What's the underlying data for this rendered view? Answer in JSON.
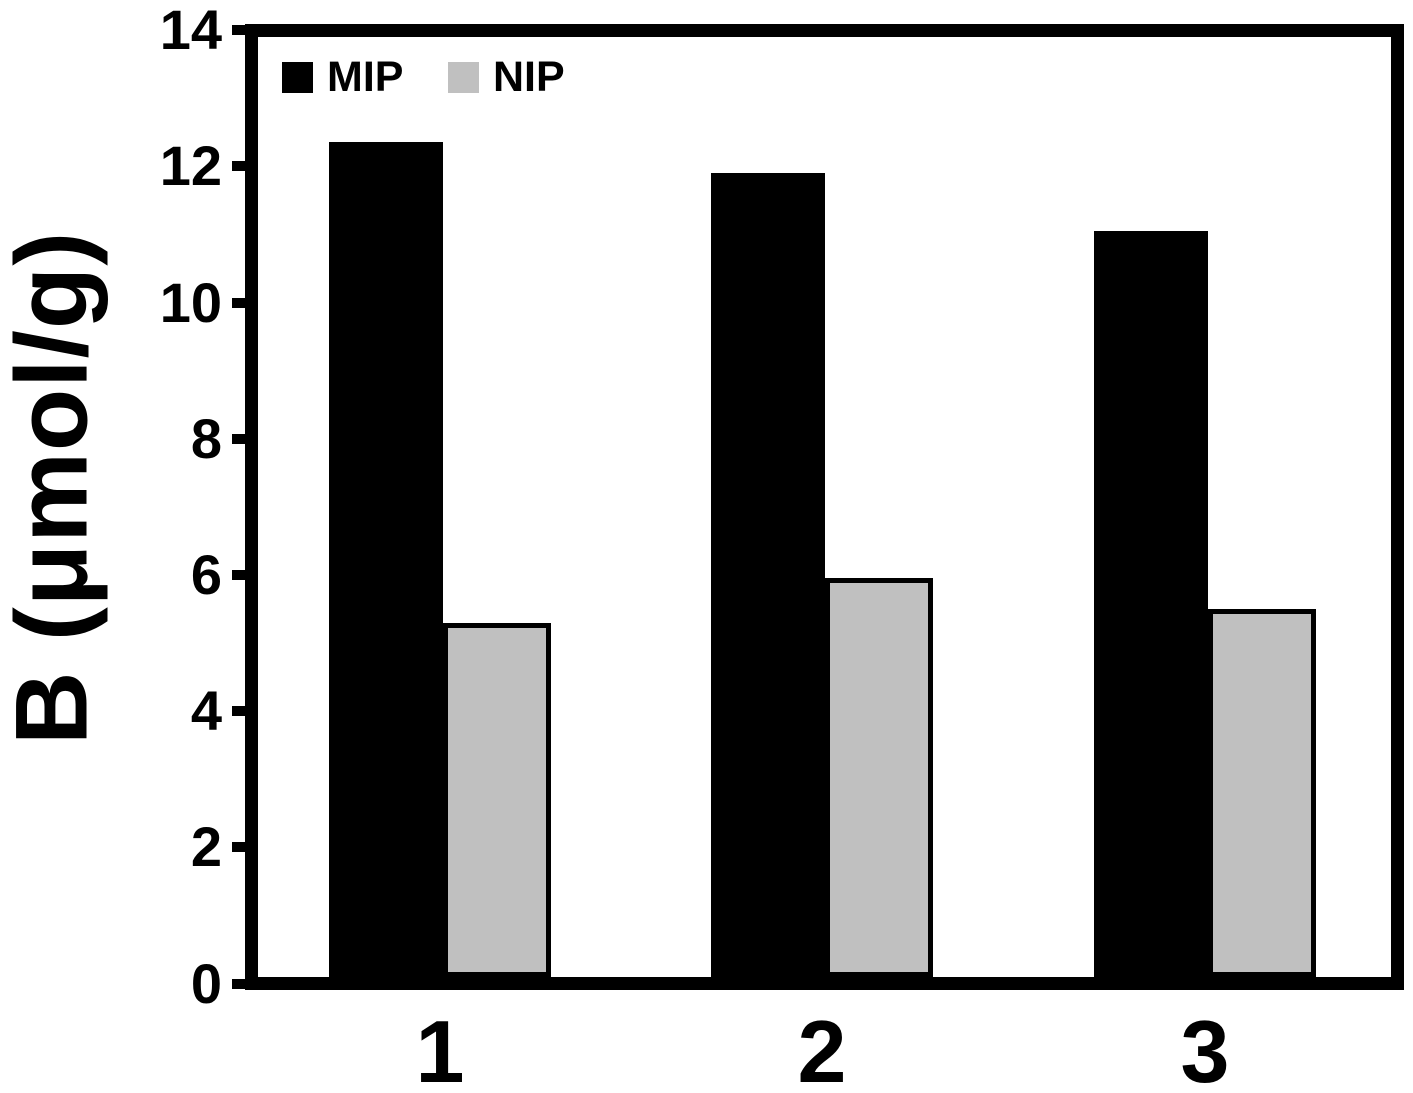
{
  "chart_data": {
    "type": "bar",
    "title": "",
    "categories": [
      "1",
      "2",
      "3"
    ],
    "series": [
      {
        "name": "MIP",
        "values": [
          12.35,
          11.9,
          11.05
        ],
        "color": "#000000"
      },
      {
        "name": "NIP",
        "values": [
          5.3,
          5.95,
          5.5
        ],
        "color": "#c0c0c0",
        "border_color": "#000000"
      }
    ],
    "xlabel": "",
    "ylabel": "B (μmol/g)",
    "ylim": [
      0,
      14
    ],
    "yticks": [
      0,
      2,
      4,
      6,
      8,
      10,
      12,
      14
    ],
    "grid": false,
    "legend_position": "top-left",
    "frame": "full-box",
    "background": "#ffffff",
    "axis_color": "#000000"
  }
}
